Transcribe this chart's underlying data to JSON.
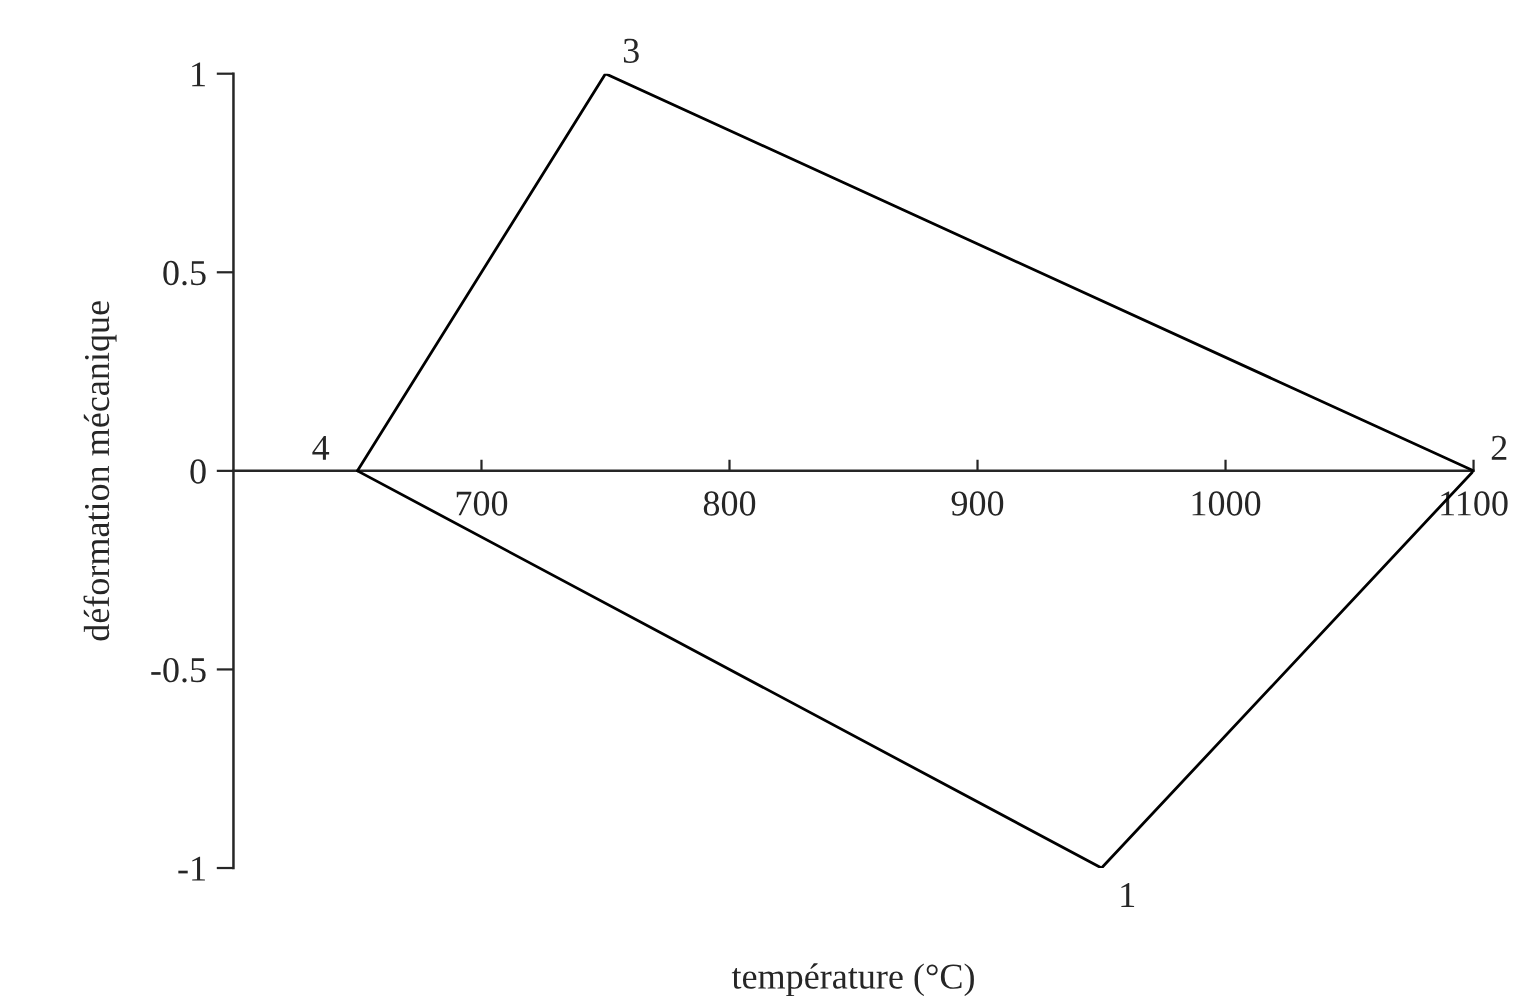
{
  "chart_data": {
    "type": "line",
    "xlabel": "température (°C)",
    "ylabel": "déformation mécanique",
    "series": [
      {
        "color": "#000000",
        "x": [
          650,
          750,
          1100
        ],
        "values": [
          0,
          1,
          0
        ]
      },
      {
        "color": "#000000",
        "x": [
          650,
          950,
          1100
        ],
        "values": [
          0,
          -1,
          0
        ]
      }
    ],
    "annotations": [
      {
        "text": "1",
        "x": 950,
        "y": -1
      },
      {
        "text": "2",
        "x": 1100,
        "y": 0
      },
      {
        "text": "3",
        "x": 750,
        "y": 1
      },
      {
        "text": "4",
        "x": 650,
        "y": 0
      }
    ],
    "xlim": [
      600,
      1100
    ],
    "xticks": [
      700,
      800,
      900,
      1000,
      1100
    ],
    "ylim": [
      -1,
      1
    ],
    "yticks": [
      {
        "value": -1,
        "label": "-1"
      },
      {
        "value": -0.5,
        "label": "-0.5"
      },
      0,
      0.5,
      1
    ],
    "grid": false,
    "marker": "none",
    "line_style": "solid"
  }
}
